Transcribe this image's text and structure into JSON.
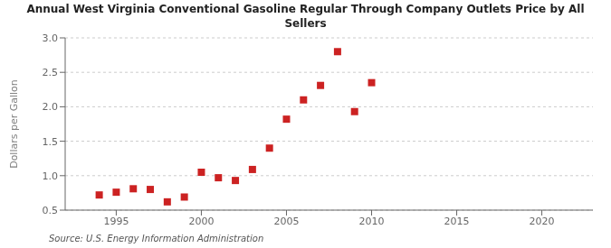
{
  "chart_data": {
    "type": "scatter",
    "title": "Annual West Virginia Conventional Gasoline Regular Through Company Outlets Price by All\nSellers",
    "y_label": "Dollars per Gallon",
    "source": "Source: U.S. Energy Information Administration",
    "x": [
      1994,
      1995,
      1996,
      1997,
      1998,
      1999,
      2000,
      2001,
      2002,
      2003,
      2004,
      2005,
      2006,
      2007,
      2008,
      2009,
      2010
    ],
    "values": [
      0.72,
      0.76,
      0.81,
      0.8,
      0.62,
      0.69,
      1.05,
      0.97,
      0.93,
      1.09,
      1.4,
      1.82,
      2.1,
      2.31,
      2.8,
      1.93,
      2.35
    ],
    "color": "#cc2222",
    "marker": "square",
    "xlim": [
      1992,
      2023
    ],
    "ylim": [
      0.5,
      3.0
    ],
    "xticks": [
      1995,
      2000,
      2005,
      2010,
      2015,
      2020
    ],
    "yticks": [
      0.5,
      {
        "value": 1.0,
        "label": "1.0"
      },
      1.5,
      {
        "value": 2.0,
        "label": "2.0"
      },
      2.5,
      {
        "value": 3.0,
        "label": "3.0"
      }
    ],
    "grid": true
  }
}
